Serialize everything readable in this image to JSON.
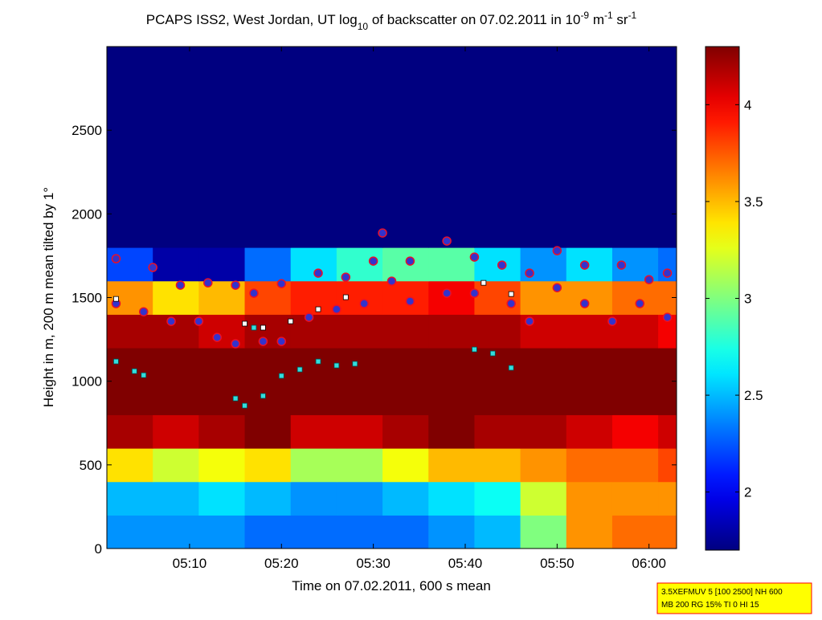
{
  "chart_data": {
    "type": "heatmap",
    "title_parts": [
      "PCAPS ISS2, West Jordan, UT log",
      "10",
      " of backscatter on 07.02.2011 in 10",
      "-9",
      " m",
      "-1",
      " sr",
      "-1"
    ],
    "title_shifts": [
      "base",
      "sub",
      "base",
      "super",
      "base",
      "super",
      "base",
      "super"
    ],
    "xlabel": "Time on 07.02.2011, 600 s mean",
    "ylabel": "Height in m, 200 m mean tilted by 1°",
    "xlim": [
      "05:01",
      "06:03"
    ],
    "xticks": [
      "05:10",
      "05:20",
      "05:30",
      "05:40",
      "05:50",
      "06:00"
    ],
    "ylim": [
      0,
      3000
    ],
    "yticks": [
      0,
      500,
      1000,
      1500,
      2000,
      2500
    ],
    "clim": [
      1.7,
      4.3
    ],
    "cticks": [
      2,
      2.5,
      3,
      3.5,
      4
    ],
    "colormap": "jet",
    "x": [
      "05:01",
      "05:06",
      "05:11",
      "05:16",
      "05:21",
      "05:26",
      "05:31",
      "05:36",
      "05:41",
      "05:46",
      "05:51",
      "05:56",
      "06:01"
    ],
    "y": [
      0,
      200,
      400,
      600,
      800,
      1000,
      1200,
      1400,
      1600,
      1800,
      2000,
      2200,
      2400,
      2600,
      2800
    ],
    "z": [
      [
        2.4,
        2.4,
        2.4,
        2.3,
        2.3,
        2.3,
        2.3,
        2.4,
        2.5,
        3.0,
        3.6,
        3.7,
        3.7
      ],
      [
        2.5,
        2.5,
        2.6,
        2.5,
        2.4,
        2.4,
        2.5,
        2.6,
        2.7,
        3.2,
        3.6,
        3.6,
        3.6
      ],
      [
        3.4,
        3.2,
        3.3,
        3.4,
        3.1,
        3.1,
        3.3,
        3.5,
        3.5,
        3.6,
        3.7,
        3.7,
        3.8
      ],
      [
        4.2,
        4.1,
        4.2,
        4.3,
        4.1,
        4.1,
        4.2,
        4.3,
        4.2,
        4.2,
        4.1,
        4.0,
        4.1
      ],
      [
        4.3,
        4.3,
        4.3,
        4.3,
        4.3,
        4.3,
        4.3,
        4.3,
        4.3,
        4.3,
        4.3,
        4.3,
        4.3
      ],
      [
        4.3,
        4.3,
        4.3,
        4.3,
        4.3,
        4.3,
        4.3,
        4.3,
        4.3,
        4.3,
        4.3,
        4.3,
        4.3
      ],
      [
        4.2,
        4.2,
        4.1,
        4.2,
        4.2,
        4.2,
        4.2,
        4.2,
        4.2,
        4.1,
        4.1,
        4.1,
        4.0
      ],
      [
        3.6,
        3.4,
        3.5,
        3.8,
        3.9,
        3.9,
        3.9,
        4.0,
        3.8,
        3.6,
        3.6,
        3.7,
        3.7
      ],
      [
        2.2,
        1.8,
        1.8,
        2.3,
        2.6,
        2.8,
        2.9,
        2.9,
        2.6,
        2.4,
        2.6,
        2.4,
        2.3
      ],
      [
        1.7,
        1.7,
        1.7,
        1.7,
        1.7,
        1.7,
        1.7,
        1.7,
        1.7,
        1.7,
        1.7,
        1.7,
        1.7
      ],
      [
        1.7,
        1.7,
        1.7,
        1.7,
        1.7,
        1.7,
        1.7,
        1.7,
        1.7,
        1.7,
        1.7,
        1.7,
        1.7
      ],
      [
        1.7,
        1.7,
        1.7,
        1.7,
        1.7,
        1.7,
        1.7,
        1.7,
        1.7,
        1.7,
        1.7,
        1.7,
        1.7
      ],
      [
        1.7,
        1.7,
        1.7,
        1.7,
        1.7,
        1.7,
        1.7,
        1.7,
        1.7,
        1.7,
        1.7,
        1.7,
        1.7
      ],
      [
        1.7,
        1.7,
        1.7,
        1.7,
        1.7,
        1.7,
        1.7,
        1.7,
        1.7,
        1.7,
        1.7,
        1.7,
        1.7
      ],
      [
        1.7,
        1.7,
        1.7,
        1.7,
        1.7,
        1.7,
        1.7,
        1.7,
        1.7,
        1.7,
        1.7,
        1.7,
        1.7
      ]
    ],
    "series": [
      {
        "marker": "o",
        "color": "#3333cc",
        "edgecolor": "#e8102a",
        "x": [
          "05:02",
          "05:06",
          "05:09",
          "05:12",
          "05:15",
          "05:17",
          "05:20",
          "05:24",
          "05:27",
          "05:30",
          "05:31",
          "05:34",
          "05:38",
          "05:41",
          "05:44",
          "05:47",
          "05:50",
          "05:53",
          "05:57",
          "06:00",
          "06:02"
        ],
        "values": [
          1732,
          1680,
          1574,
          1588,
          1574,
          1526,
          1583,
          1646,
          1622,
          1718,
          1886,
          1718,
          1838,
          1742,
          1694,
          1646,
          1780,
          1694,
          1694,
          1607,
          1646
        ]
      },
      {
        "marker": "o",
        "color": "#3333cc",
        "edgecolor": "#e8102a",
        "x": [
          "05:02",
          "05:05",
          "05:08",
          "05:11",
          "05:13",
          "05:15",
          "05:18",
          "05:20",
          "05:23",
          "05:26",
          "05:29",
          "05:32",
          "05:34",
          "05:38",
          "05:41",
          "05:45",
          "05:47",
          "05:50",
          "05:53",
          "05:56",
          "05:59",
          "06:02"
        ],
        "values": [
          1464,
          1415,
          1358,
          1358,
          1262,
          1224,
          1238,
          1238,
          1382,
          1430,
          1464,
          1598,
          1478,
          1526,
          1526,
          1464,
          1358,
          1559,
          1464,
          1358,
          1464,
          1382
        ]
      },
      {
        "marker": "s",
        "color": "#ffffff",
        "edgecolor": "#000000",
        "x": [
          "05:02",
          "05:16",
          "05:18",
          "05:21",
          "05:24",
          "05:27",
          "05:42",
          "05:45"
        ],
        "values": [
          1492,
          1344,
          1320,
          1358,
          1430,
          1502,
          1588,
          1521
        ]
      },
      {
        "marker": "s",
        "color": "#33dddd",
        "edgecolor": "#005050",
        "x": [
          "05:02",
          "05:04",
          "05:05",
          "05:15",
          "05:16",
          "05:17",
          "05:18",
          "05:20",
          "05:22",
          "05:24",
          "05:26",
          "05:28",
          "05:41",
          "05:43",
          "05:45"
        ],
        "values": [
          1118,
          1060,
          1036,
          897,
          854,
          1320,
          912,
          1032,
          1070,
          1118,
          1094,
          1104,
          1190,
          1166,
          1080
        ]
      }
    ],
    "annotation": [
      "3.5XEFMUV 5 [100 2500] NH 600",
      "MB 200 RG 15% TI 0 HI 15"
    ]
  }
}
